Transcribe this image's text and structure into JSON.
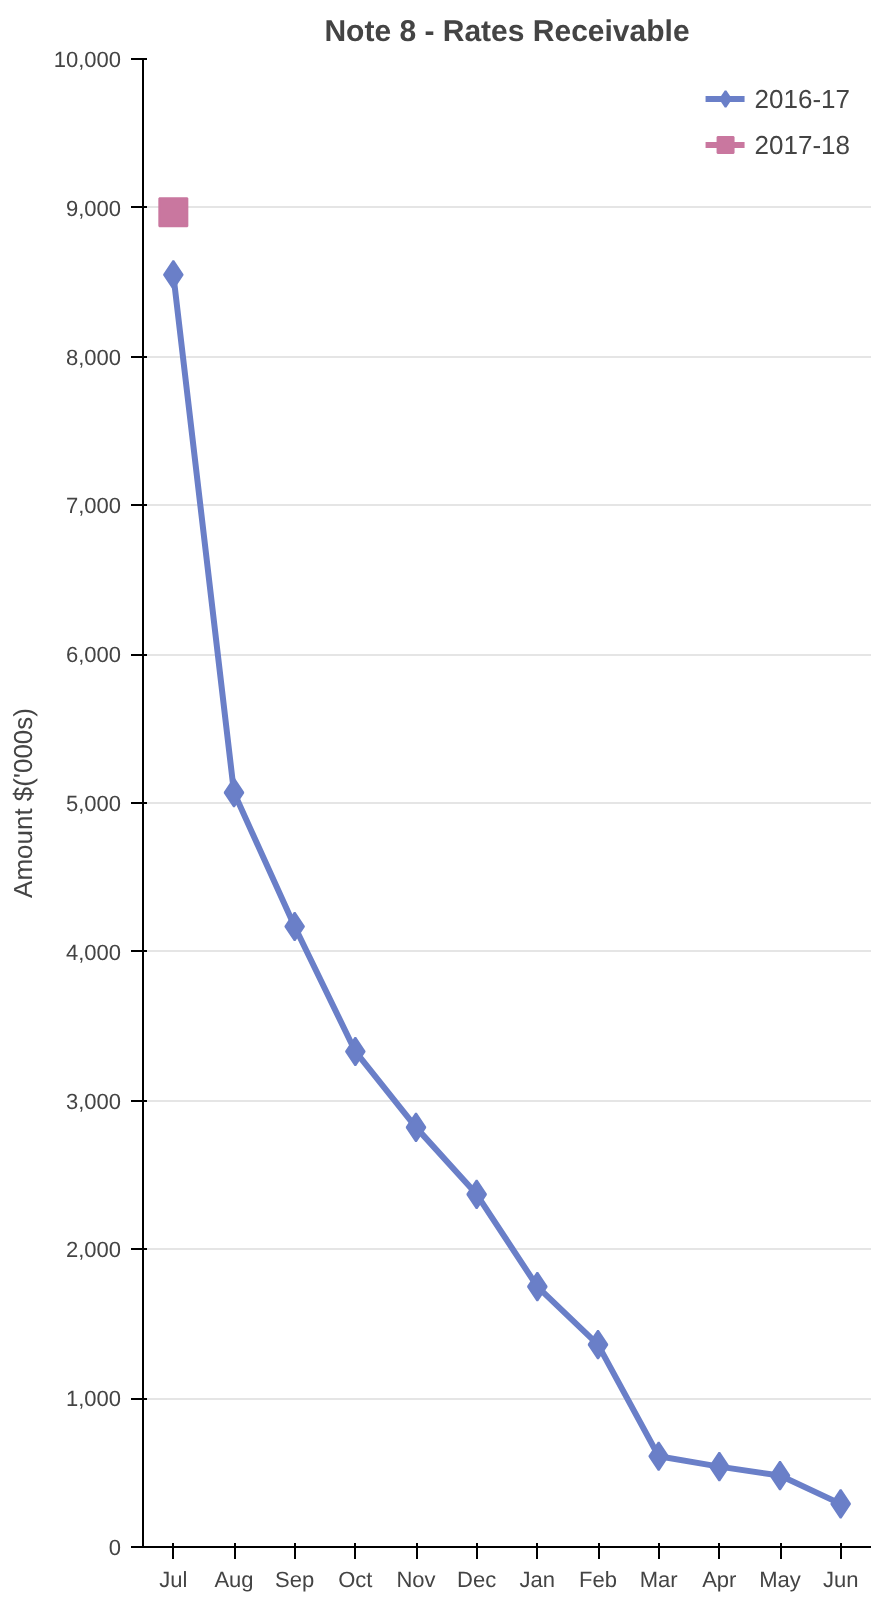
{
  "chart_data": {
    "type": "line",
    "title": "Note 8 - Rates Receivable",
    "ylabel": "Amount $('000s)",
    "categories": [
      "Jul",
      "Aug",
      "Sep",
      "Oct",
      "Nov",
      "Dec",
      "Jan",
      "Feb",
      "Mar",
      "Apr",
      "May",
      "Jun"
    ],
    "series": [
      {
        "name": "2016-17",
        "color": "#6a7fc8",
        "marker": "diamond",
        "values": [
          8550,
          5070,
          4170,
          3330,
          2820,
          2370,
          1750,
          1360,
          610,
          540,
          480,
          290
        ]
      },
      {
        "name": "2017-18",
        "color": "#c9779f",
        "marker": "square",
        "values": [
          8970,
          null,
          null,
          null,
          null,
          null,
          null,
          null,
          null,
          null,
          null,
          null
        ]
      }
    ],
    "ylim": [
      0,
      10000
    ],
    "yticks": [
      {
        "value": 0,
        "label": "0"
      },
      {
        "value": 1000,
        "label": "1,000"
      },
      {
        "value": 2000,
        "label": "2,000"
      },
      {
        "value": 3000,
        "label": "3,000"
      },
      {
        "value": 4000,
        "label": "4,000"
      },
      {
        "value": 5000,
        "label": "5,000"
      },
      {
        "value": 6000,
        "label": "6,000"
      },
      {
        "value": 7000,
        "label": "7,000"
      },
      {
        "value": 8000,
        "label": "8,000"
      },
      {
        "value": 9000,
        "label": "9,000"
      },
      {
        "value": 10000,
        "label": "10,000"
      }
    ],
    "grid": "y",
    "legend": "top right",
    "line_style": "solid"
  }
}
